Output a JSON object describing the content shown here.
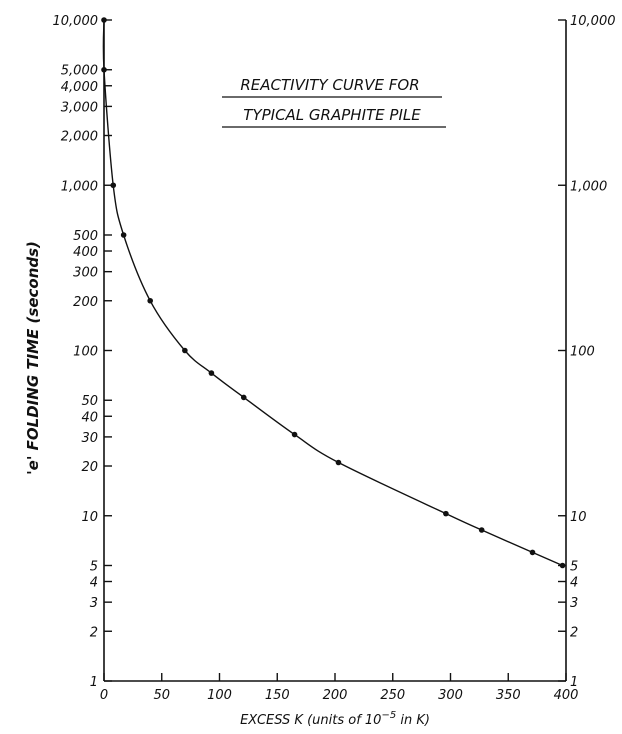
{
  "chart_data": {
    "type": "line",
    "title_lines": [
      "REACTIVITY CURVE FOR",
      "TYPICAL GRAPHITE PILE"
    ],
    "xlabel_main": "EXCESS K (units of 10",
    "xlabel_exp": "−5",
    "xlabel_tail": " in K)",
    "ylabel": "'e' FOLDING TIME (seconds)",
    "x_scale": "linear",
    "y_scale": "log",
    "xlim": [
      0,
      400
    ],
    "ylim": [
      1,
      10000
    ],
    "grid": false,
    "x_ticks": [
      0,
      50,
      100,
      150,
      200,
      250,
      300,
      350,
      400
    ],
    "x_tick_labels": [
      "0",
      "50",
      "100",
      "150",
      "200",
      "250",
      "300",
      "350",
      "400"
    ],
    "y_ticks_left": [
      1,
      2,
      3,
      4,
      5,
      10,
      20,
      30,
      40,
      50,
      100,
      200,
      300,
      400,
      500,
      1000,
      2000,
      3000,
      4000,
      5000,
      10000
    ],
    "y_tick_labels_left": [
      "1",
      "2",
      "3",
      "4",
      "5",
      "10",
      "20",
      "30",
      "40",
      "50",
      "100",
      "200",
      "300",
      "400",
      "500",
      "1,000",
      "2,000",
      "3,000",
      "4,000",
      "5,000",
      "10,000"
    ],
    "y_ticks_right": [
      1,
      2,
      3,
      4,
      5,
      10,
      100,
      1000,
      10000
    ],
    "y_tick_labels_right": [
      "1",
      "2",
      "3",
      "4",
      "5",
      "10",
      "100",
      "1,000",
      "10,000"
    ],
    "series": [
      {
        "x": [
          0,
          0,
          8,
          17,
          40,
          70,
          93,
          121,
          165,
          203,
          296,
          327,
          371,
          397
        ],
        "y": [
          10000,
          5000,
          1000,
          500,
          200,
          100,
          73,
          52,
          31,
          21,
          10.3,
          8.2,
          6.0,
          5.0
        ]
      }
    ]
  }
}
